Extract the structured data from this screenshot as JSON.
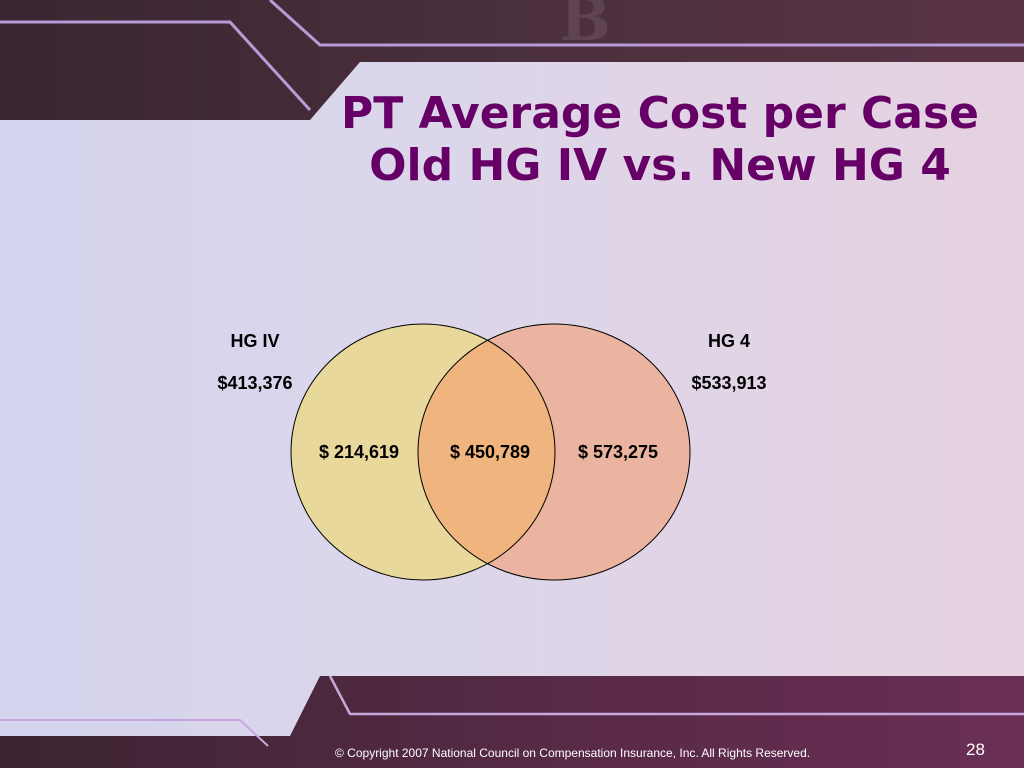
{
  "slide": {
    "title_line1": "PT Average Cost per Case",
    "title_line2": "Old HG IV vs. New HG 4",
    "footer": "© Copyright 2007 National Council on Compensation Insurance, Inc. All Rights  Reserved.",
    "page_number": "28",
    "title_color": "#660066"
  },
  "venn": {
    "left_set": {
      "name": "HG IV",
      "total": "$413,376",
      "only_value": "$ 214,619",
      "fill": "#e8d89c"
    },
    "right_set": {
      "name": "HG 4",
      "total": "$533,913",
      "only_value": "$ 573,275",
      "fill": "#ebb4a0"
    },
    "overlap": {
      "value": "$ 450,789",
      "fill": "#f0b47e"
    }
  }
}
